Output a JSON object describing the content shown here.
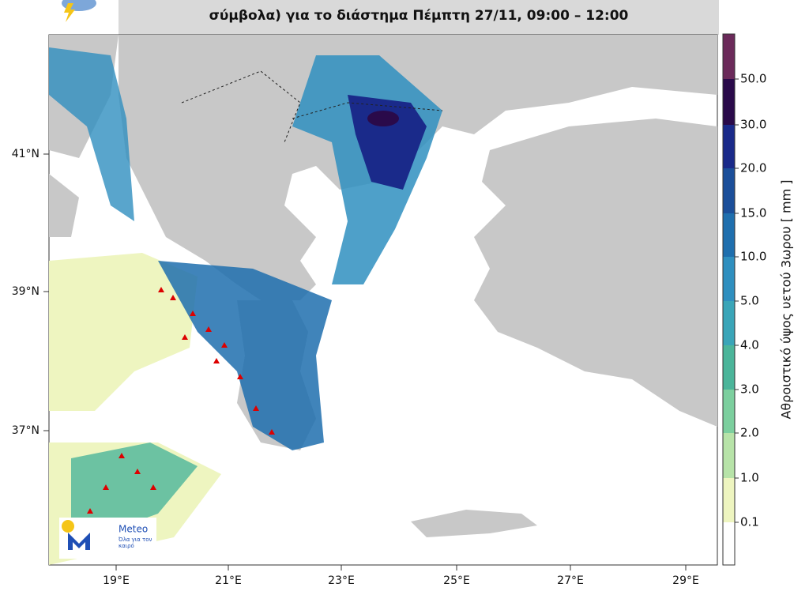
{
  "header": {
    "title": "σύμβολα) για το διάστημα Πέμπτη 27/11, 09:00 – 12:00"
  },
  "map": {
    "lat_labels": [
      "41°N",
      "39°N",
      "37°N"
    ],
    "lon_labels": [
      "19°E",
      "21°E",
      "23°E",
      "25°E",
      "27°E",
      "29°E"
    ]
  },
  "colorbar": {
    "label": "Αθροιστικό ύψος υετού 3ωρου [ mm ]",
    "ticks": [
      "50.0",
      "30.0",
      "20.0",
      "15.0",
      "10.0",
      "5.0",
      "4.0",
      "3.0",
      "2.0",
      "1.0",
      "0.1"
    ]
  },
  "logo": {
    "name": "Meteo",
    "tagline": "Όλα για τον καιρό"
  }
}
